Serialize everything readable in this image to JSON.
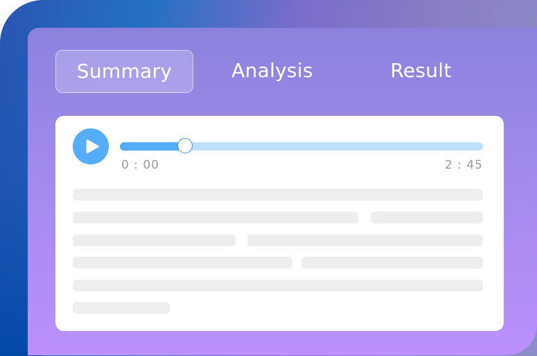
{
  "tabs": [
    {
      "label": "Summary",
      "active": true
    },
    {
      "label": "Analysis",
      "active": false
    },
    {
      "label": "Result",
      "active": false
    }
  ],
  "player": {
    "play_icon": "play-icon",
    "current_time": "0 : 00",
    "total_time": "2 : 45",
    "progress_percent": 18
  },
  "colors": {
    "accent": "#55acf7",
    "track": "#bfe0fb",
    "panel": "#a48bee"
  }
}
